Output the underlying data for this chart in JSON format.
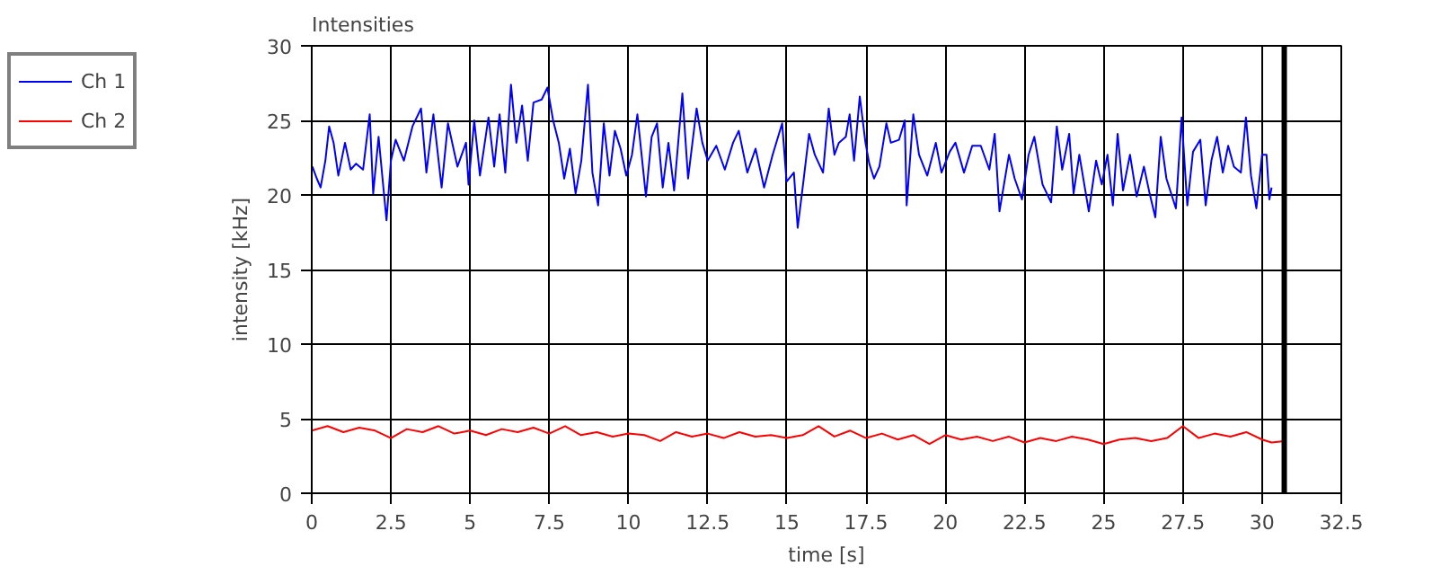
{
  "chart_data": {
    "type": "line",
    "title": "Intensities",
    "xlabel": "time [s]",
    "ylabel": "intensity [kHz]",
    "xlim": [
      0,
      32.5
    ],
    "ylim": [
      0,
      30
    ],
    "xticks": [
      0,
      2.5,
      5,
      7.5,
      10,
      12.5,
      15,
      17.5,
      20,
      22.5,
      25,
      27.5,
      30,
      32.5
    ],
    "yticks": [
      0,
      5,
      10,
      15,
      20,
      25,
      30
    ],
    "grid": true,
    "legend": "top left",
    "line_style": "solid",
    "ref_lines": [
      {
        "axis": "x",
        "value": 30.7,
        "label": null,
        "color": "#000000"
      }
    ],
    "series": [
      {
        "name": "Ch 1",
        "color": "#0000ff",
        "x": [
          0.02,
          0.16,
          0.28,
          0.43,
          0.55,
          0.69,
          0.84,
          1.05,
          1.23,
          1.4,
          1.62,
          1.83,
          1.94,
          2.11,
          2.36,
          2.5,
          2.65,
          2.91,
          3.18,
          3.45,
          3.62,
          3.84,
          4.1,
          4.3,
          4.6,
          4.87,
          4.95,
          5.13,
          5.31,
          5.58,
          5.76,
          5.93,
          6.11,
          6.29,
          6.46,
          6.64,
          6.82,
          7.0,
          7.26,
          7.44,
          7.62,
          7.8,
          7.97,
          8.15,
          8.33,
          8.51,
          8.72,
          8.86,
          9.04,
          9.22,
          9.4,
          9.57,
          9.75,
          9.93,
          10.11,
          10.28,
          10.55,
          10.73,
          10.9,
          11.08,
          11.26,
          11.44,
          11.7,
          11.88,
          12.15,
          12.33,
          12.5,
          12.77,
          13.04,
          13.3,
          13.48,
          13.75,
          14.01,
          14.28,
          14.55,
          14.85,
          14.99,
          15.22,
          15.34,
          15.52,
          15.7,
          15.88,
          16.14,
          16.32,
          16.5,
          16.64,
          16.86,
          16.98,
          17.12,
          17.3,
          17.48,
          17.6,
          17.75,
          17.92,
          18.14,
          18.28,
          18.54,
          18.72,
          18.78,
          18.99,
          19.17,
          19.43,
          19.7,
          19.88,
          20.14,
          20.32,
          20.59,
          20.85,
          21.12,
          21.39,
          21.56,
          21.71,
          22.01,
          22.19,
          22.42,
          22.63,
          22.81,
          23.07,
          23.34,
          23.52,
          23.69,
          23.91,
          24.05,
          24.23,
          24.53,
          24.76,
          24.94,
          25.12,
          25.29,
          25.44,
          25.61,
          25.83,
          26.04,
          26.27,
          26.45,
          26.63,
          26.8,
          26.98,
          27.28,
          27.46,
          27.64,
          27.82,
          28.05,
          28.22,
          28.4,
          28.58,
          28.76,
          28.93,
          29.11,
          29.33,
          29.49,
          29.65,
          29.82,
          30.0,
          30.14,
          30.23,
          30.3
        ],
        "values": [
          21.9,
          21.1,
          20.5,
          22.3,
          24.6,
          23.5,
          21.3,
          23.5,
          21.7,
          22.1,
          21.7,
          25.4,
          20.1,
          23.9,
          18.3,
          22.3,
          23.7,
          22.3,
          24.6,
          25.8,
          21.5,
          25.4,
          20.5,
          24.8,
          21.9,
          23.5,
          20.7,
          25.0,
          21.3,
          25.2,
          21.9,
          25.4,
          21.5,
          27.4,
          23.5,
          26.0,
          22.3,
          26.2,
          26.4,
          27.2,
          25.0,
          23.5,
          21.1,
          23.1,
          20.1,
          22.3,
          27.4,
          21.5,
          19.3,
          24.8,
          21.3,
          24.3,
          23.1,
          21.3,
          22.7,
          25.4,
          19.9,
          23.9,
          24.8,
          20.5,
          23.5,
          20.3,
          26.8,
          21.1,
          25.8,
          23.5,
          22.3,
          23.3,
          21.7,
          23.5,
          24.3,
          21.5,
          23.1,
          20.5,
          22.7,
          24.8,
          20.9,
          21.5,
          17.8,
          20.9,
          24.1,
          22.7,
          21.5,
          25.8,
          22.7,
          23.5,
          23.9,
          25.4,
          22.3,
          26.6,
          23.5,
          22.1,
          21.1,
          21.9,
          24.8,
          23.5,
          23.7,
          25.0,
          19.3,
          25.4,
          22.7,
          21.3,
          23.5,
          21.5,
          22.9,
          23.5,
          21.5,
          23.3,
          23.3,
          21.7,
          24.1,
          18.9,
          22.7,
          21.1,
          19.7,
          22.7,
          23.9,
          20.7,
          19.5,
          24.6,
          21.7,
          24.1,
          20.1,
          22.7,
          18.9,
          22.3,
          20.7,
          22.7,
          19.3,
          24.1,
          20.3,
          22.7,
          19.9,
          21.9,
          20.1,
          18.5,
          23.9,
          21.1,
          19.1,
          25.2,
          19.3,
          22.9,
          23.7,
          19.3,
          22.3,
          23.9,
          21.5,
          23.3,
          21.9,
          21.5,
          25.2,
          21.3,
          19.1,
          22.7,
          22.7,
          19.7,
          20.5
        ]
      },
      {
        "name": "Ch 2",
        "color": "#ff0000",
        "x": [
          0,
          0.5,
          1,
          1.5,
          2,
          2.5,
          3,
          3.5,
          4,
          4.5,
          5,
          5.5,
          6,
          6.5,
          7,
          7.5,
          8,
          8.5,
          9,
          9.5,
          10,
          10.5,
          11,
          11.5,
          12,
          12.5,
          13,
          13.5,
          14,
          14.5,
          15,
          15.5,
          16,
          16.5,
          17,
          17.5,
          18,
          18.5,
          19,
          19.5,
          20,
          20.5,
          21,
          21.5,
          22,
          22.5,
          23,
          23.5,
          24,
          24.5,
          25,
          25.5,
          26,
          26.5,
          27,
          27.5,
          28,
          28.5,
          29,
          29.5,
          30,
          30.3,
          30.7
        ],
        "values": [
          4.2,
          4.5,
          4.1,
          4.4,
          4.2,
          3.7,
          4.3,
          4.1,
          4.5,
          4.0,
          4.2,
          3.9,
          4.3,
          4.1,
          4.4,
          4.0,
          4.5,
          3.9,
          4.1,
          3.8,
          4.0,
          3.9,
          3.5,
          4.1,
          3.8,
          4.0,
          3.7,
          4.1,
          3.8,
          3.9,
          3.7,
          3.9,
          4.5,
          3.8,
          4.2,
          3.7,
          4.0,
          3.6,
          3.9,
          3.3,
          3.9,
          3.6,
          3.8,
          3.5,
          3.8,
          3.4,
          3.7,
          3.5,
          3.8,
          3.6,
          3.3,
          3.6,
          3.7,
          3.5,
          3.7,
          4.5,
          3.7,
          4.0,
          3.8,
          4.1,
          3.6,
          3.4,
          3.5
        ]
      }
    ]
  }
}
